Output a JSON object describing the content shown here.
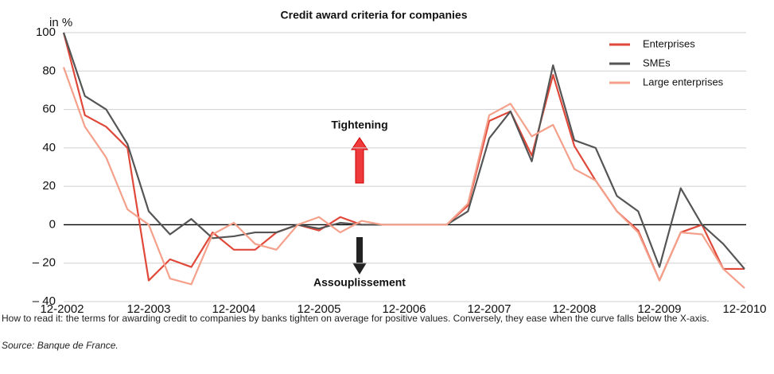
{
  "chart_data": {
    "type": "line",
    "title": "Credit award criteria for companies",
    "ylabel": "in %",
    "annotations": [
      "Tightening",
      "Assouplissement"
    ],
    "note": "How to read it: the terms for awarding credit to companies by banks tighten on average for positive values. Conversely, they ease when the curve falls below the X-axis.",
    "source": "Source: Banque de France.",
    "categories": [
      "12-2002",
      null,
      null,
      null,
      "12-2003",
      null,
      null,
      null,
      "12-2004",
      null,
      null,
      null,
      "12-2005",
      null,
      null,
      null,
      "12-2006",
      null,
      null,
      null,
      "12-2007",
      null,
      null,
      null,
      "12-2008",
      null,
      null,
      null,
      "12-2009",
      null,
      null,
      null,
      "12-2010"
    ],
    "series": [
      {
        "name": "Enterprises",
        "color": "#e0483a",
        "values": [
          100,
          57,
          51,
          40,
          -29,
          -18,
          -22,
          -4,
          -13,
          -13,
          -4,
          0,
          -3,
          4,
          0,
          0,
          0,
          0,
          0,
          10,
          54,
          59,
          36,
          78,
          41,
          23,
          7,
          -3,
          -29,
          -4,
          0,
          -23,
          -23
        ]
      },
      {
        "name": "SMEs",
        "color": "#555555",
        "values": [
          100,
          67,
          60,
          42,
          7,
          -5,
          3,
          -7,
          -6,
          -4,
          -4,
          0,
          -2,
          1,
          0,
          0,
          0,
          0,
          0,
          7,
          45,
          59,
          33,
          83,
          44,
          40,
          15,
          7,
          -22,
          19,
          0,
          -10,
          -23
        ]
      },
      {
        "name": "Large enterprises",
        "color": "#f4a08a",
        "values": [
          82,
          51,
          35,
          8,
          0,
          -28,
          -31,
          -5,
          1,
          -10,
          -13,
          0,
          4,
          -4,
          2,
          0,
          0,
          0,
          0,
          11,
          57,
          63,
          46,
          52,
          29,
          23,
          7,
          -4,
          -29,
          -4,
          -5,
          -23,
          -33
        ]
      }
    ],
    "ylim": [
      -40,
      100
    ],
    "yticks": [
      {
        "value": -40,
        "label": "– 40"
      },
      {
        "value": -20,
        "label": "– 20"
      },
      0,
      20,
      40,
      60,
      80,
      100
    ],
    "grid": true,
    "legend": "top-right"
  }
}
